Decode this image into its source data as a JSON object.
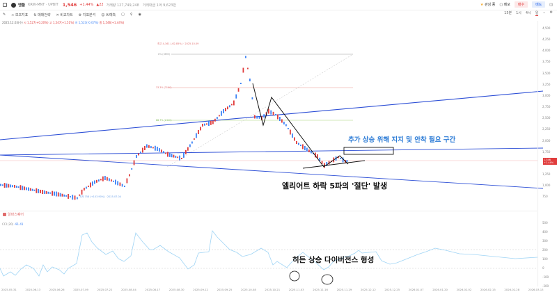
{
  "header": {
    "coin_name": "엔들",
    "pair": "KRW-MNT · UPBIT",
    "price": "1,546",
    "change_pct": "+1.44%",
    "change_abs": "▲22",
    "volume": "거래량 127,749,248",
    "trade_value": "거래대금 1억 9,623만",
    "watch_label": "관심 종",
    "memo_label": "메모",
    "buy_label": "매수",
    "sell_label": "매도"
  },
  "toolbar": {
    "items": [
      "보조지표",
      "매매전략",
      "비교차트",
      "지표분석",
      "AI예측"
    ],
    "timeframes": [
      "15분",
      "1시",
      "4시",
      "일"
    ],
    "active_timeframe": "일"
  },
  "ohlc": {
    "date": "2025.12.03(수)",
    "open": "시 1,527(+0.20%)",
    "high": "고 1,547(+1.51%)",
    "low": "저 1,523(-0.07%)",
    "close": "종 1,546(+1.44%)"
  },
  "price_axis": [
    "4,500",
    "4,250",
    "4,000",
    "3,750",
    "3,500",
    "3,250",
    "3,000",
    "2,750",
    "2,500",
    "2,250",
    "2,000",
    "1,750",
    "1,250",
    "1,000",
    "750"
  ],
  "price_tag": {
    "price": "1,546",
    "pct": "+1.44%"
  },
  "fib": [
    {
      "label": "0% (3893)",
      "color": "#bbbbbb"
    },
    {
      "label": "33.3% (3166)",
      "color": "#f2b8b0"
    },
    {
      "label": "66.7% (2440)",
      "color": "#c4e3a4"
    }
  ],
  "high_label": "최고 4,161 (-62.85%) · 2025.10.09",
  "low_label": "최저 758 (+103.90%) · 2025.07.04",
  "annotations": {
    "support_zone": "추가 상승 위해 지지 및 안착 필요 구간",
    "elliott": "엘리어트 하락 5파의 '절단' 발생",
    "divergence": "히든 상승 다이버전스 형성"
  },
  "indicator": {
    "brand": "알파스퀘어",
    "name": "CCI (20)",
    "value": "-91.41",
    "axis": [
      "500",
      "400",
      "300",
      "200",
      "100",
      "0",
      "-100",
      "-200"
    ]
  },
  "time_axis": [
    "2025.05.31",
    "2025.06.13",
    "2025.06.26",
    "2025.07.09",
    "2025.07.22",
    "2025.08.04",
    "2025.08.17",
    "2025.08.30",
    "2025.09.12",
    "2025.09.25",
    "2025.10.08",
    "2025.10.21",
    "2025.11.03",
    "2025.11.16",
    "2025.11.29",
    "2025.12.12",
    "2025.12.25",
    "2026.01.07",
    "2026.01.20",
    "2026.02.02",
    "2026.02.15",
    "2026.02.28",
    "2026.03.13"
  ],
  "colors": {
    "up": "#e03c3c",
    "down": "#3b82f6",
    "trend": "#2d4fd6",
    "cci": "#9fd4f5"
  }
}
